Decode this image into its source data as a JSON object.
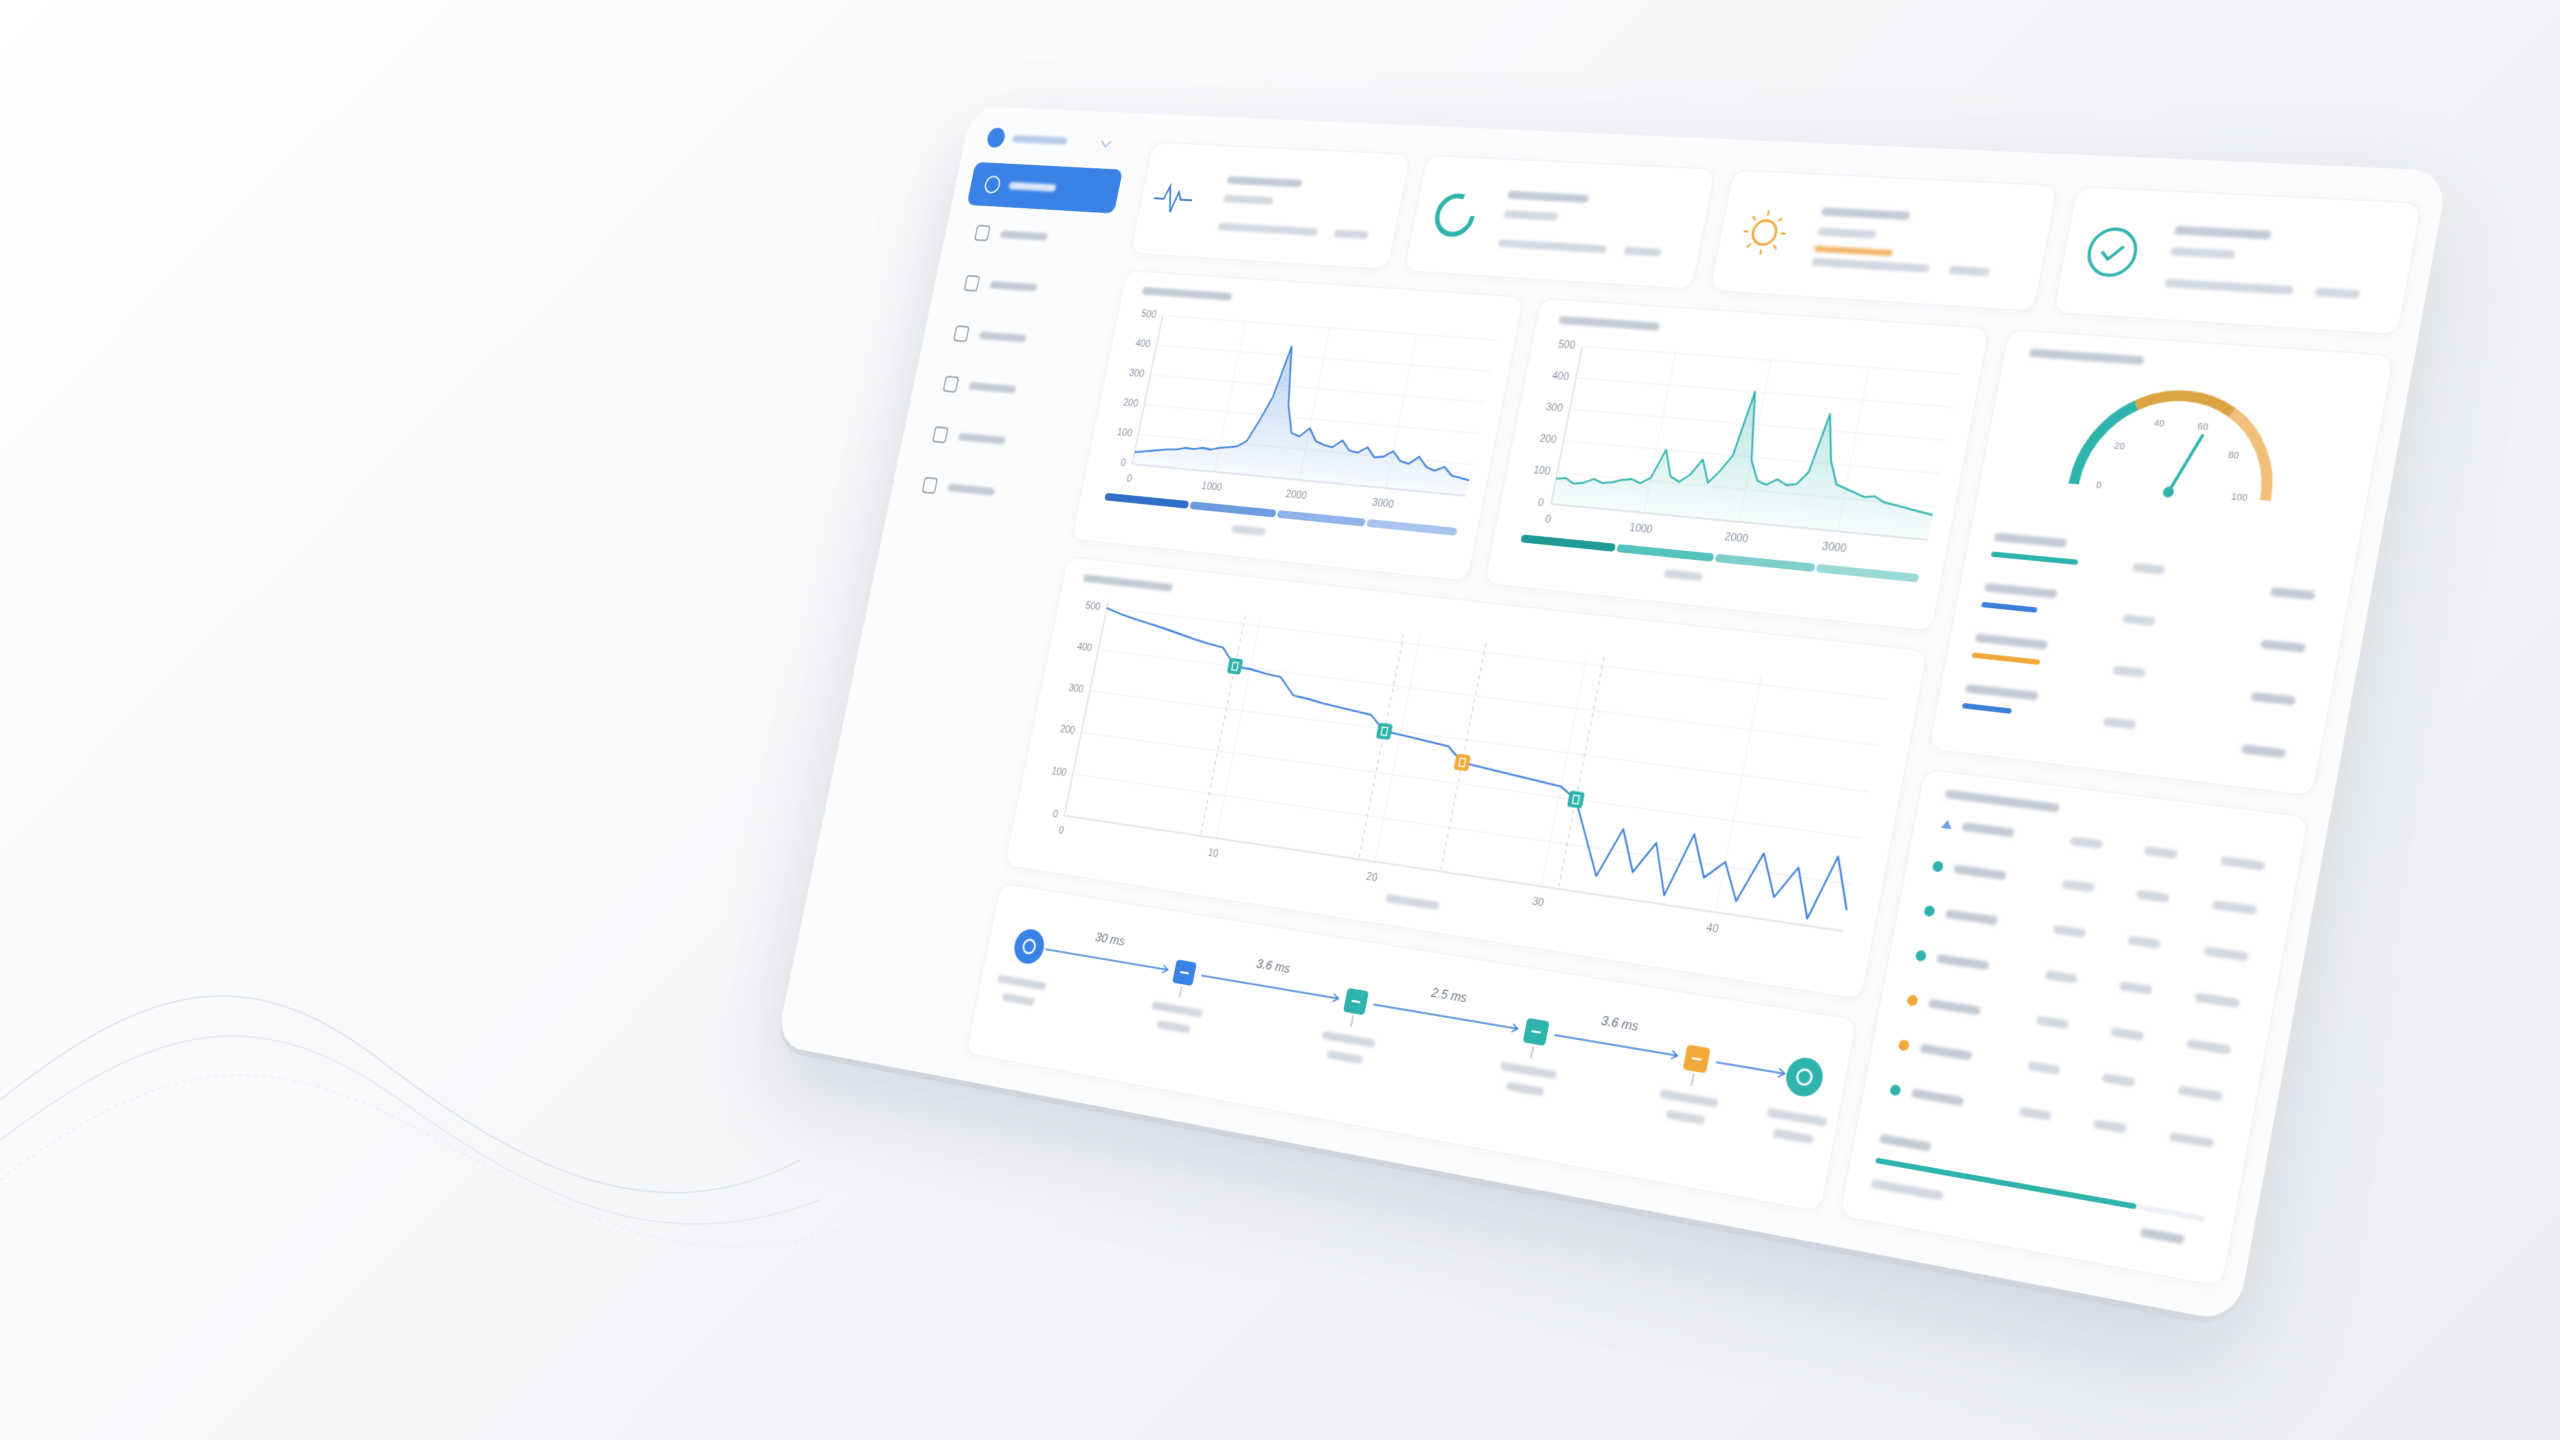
{
  "chart_data": [
    {
      "type": "line",
      "color": "#3b7fd9",
      "area": true,
      "x": [
        0,
        100,
        200,
        300,
        400,
        500,
        600,
        700,
        800,
        900,
        1000,
        1100,
        1200,
        1300,
        1400,
        1500,
        1600,
        1700,
        1800,
        1900,
        2000,
        2100,
        2200,
        2300,
        2400,
        2500,
        2600,
        2700,
        2800,
        2900,
        3000,
        3100,
        3200,
        3300,
        3400,
        3500,
        3600,
        3700,
        3800,
        3900
      ],
      "xlim": [
        0,
        3900
      ],
      "xticks": [
        0,
        1000,
        2000,
        3000
      ],
      "ylim": [
        0,
        500
      ],
      "yticks": [
        0,
        100,
        200,
        300,
        400,
        500
      ],
      "grid": true,
      "series": [
        {
          "color": "#3b7fd9",
          "values": [
            40,
            45,
            50,
            55,
            60,
            62,
            70,
            68,
            75,
            72,
            80,
            85,
            90,
            110,
            180,
            260,
            430,
            240,
            150,
            140,
            170,
            130,
            120,
            115,
            140,
            110,
            105,
            125,
            95,
            100,
            120,
            90,
            85,
            110,
            80,
            70,
            85,
            60,
            55,
            50
          ]
        }
      ]
    },
    {
      "type": "line",
      "color": "#2fb3ad",
      "area": true,
      "x": [
        0,
        100,
        200,
        300,
        400,
        500,
        600,
        700,
        800,
        900,
        1000,
        1100,
        1200,
        1300,
        1400,
        1500,
        1600,
        1700,
        1800,
        1900,
        2000,
        2100,
        2200,
        2300,
        2400,
        2500,
        2600,
        2700,
        2800,
        2900,
        3000,
        3100,
        3200,
        3300,
        3400,
        3500,
        3600,
        3700,
        3800,
        3900
      ],
      "xlim": [
        0,
        3900
      ],
      "xticks": [
        0,
        1000,
        2000,
        3000
      ],
      "ylim": [
        0,
        500
      ],
      "yticks": [
        0,
        100,
        200,
        300,
        400,
        500
      ],
      "grid": true,
      "series": [
        {
          "color": "#2fb3ad",
          "values": [
            80,
            85,
            70,
            75,
            90,
            80,
            85,
            95,
            100,
            90,
            110,
            200,
            120,
            105,
            130,
            180,
            110,
            150,
            200,
            400,
            190,
            130,
            120,
            140,
            125,
            130,
            170,
            350,
            210,
            140,
            130,
            120,
            110,
            115,
            100,
            95,
            90,
            85,
            80,
            75
          ]
        }
      ]
    },
    {
      "type": "line",
      "color": "#3b7fd9",
      "area": false,
      "x": [
        0,
        1,
        2,
        3,
        4,
        5,
        6,
        7,
        8,
        9,
        10,
        11,
        12,
        13,
        14,
        15,
        16,
        17,
        18,
        19,
        20,
        21,
        22,
        23,
        24,
        25,
        26,
        27,
        28,
        29,
        30,
        31,
        32,
        33,
        34,
        35,
        36,
        37,
        38,
        39,
        40,
        41,
        42,
        43,
        44,
        45,
        46,
        47
      ],
      "xlim": [
        0,
        47
      ],
      "xticks": [
        0,
        10,
        20,
        30,
        40
      ],
      "ylim": [
        0,
        520
      ],
      "yticks": [
        0,
        100,
        200,
        300,
        400,
        500
      ],
      "grid": true,
      "series": [
        {
          "color": "#3b7fd9",
          "values": [
            500,
            490,
            482,
            475,
            468,
            460,
            452,
            445,
            440,
            400,
            398,
            392,
            388,
            350,
            346,
            340,
            336,
            332,
            328,
            295,
            292,
            288,
            284,
            280,
            248,
            244,
            240,
            236,
            232,
            228,
            224,
            200,
            120,
            40,
            150,
            60,
            130,
            20,
            160,
            70,
            110,
            30,
            140,
            50,
            120,
            15,
            155,
            45
          ]
        }
      ],
      "markers": [
        {
          "x": 9,
          "color": "#2fb3ad"
        },
        {
          "x": 19,
          "color": "#2fb3ad"
        },
        {
          "x": 24,
          "color": "#f2a93b"
        },
        {
          "x": 31,
          "color": "#2fb3ad"
        }
      ]
    },
    {
      "type": "gauge",
      "value": 62,
      "range": [
        0,
        100
      ],
      "ticks": [
        0,
        20,
        40,
        60,
        80,
        100
      ],
      "colors": [
        "#2fb3ad",
        "#d9a441",
        "#f2c07a"
      ]
    },
    {
      "type": "progress",
      "values": [
        70,
        45,
        55,
        40
      ],
      "colors": [
        "#2fb3ad",
        "#3b7fd9",
        "#f2a93b",
        "#3b7fd9"
      ],
      "range": [
        0,
        100
      ]
    },
    {
      "type": "progress",
      "values": [
        80
      ],
      "colors": [
        "#2fb3ad"
      ],
      "range": [
        0,
        100
      ]
    }
  ],
  "timeline": {
    "segments": [
      "30 ms",
      "3.6 ms",
      "2.5 ms",
      "3.6 ms"
    ]
  }
}
